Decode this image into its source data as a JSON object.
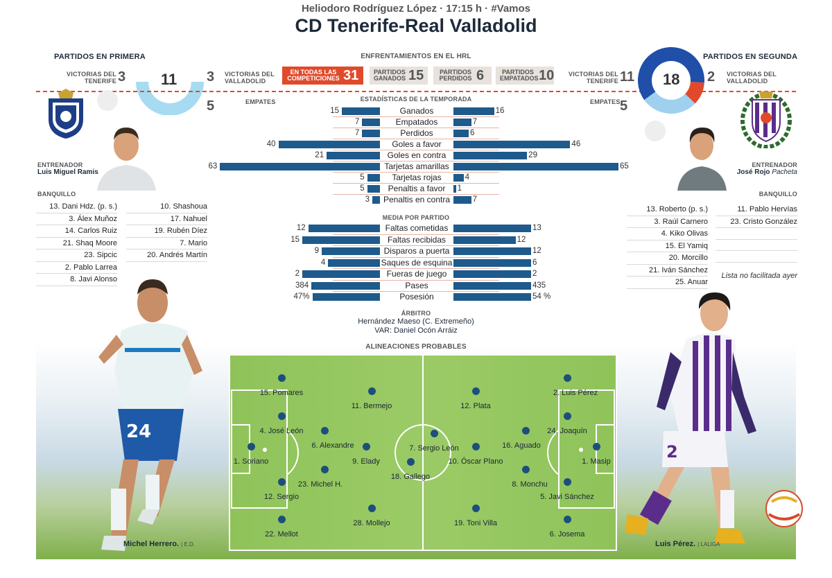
{
  "header": {
    "subtitle": "Heliodoro Rodríguez López · 17:15 h · #Vamos",
    "title": "CD Tenerife-Real Valladolid"
  },
  "primera": {
    "heading": "PARTIDOS EN PRIMERA",
    "total": "11",
    "wins_label": "VICTORIAS DEL TENERIFE",
    "wins": "3",
    "valla_label": "VICTORIAS DEL VALLADOLID",
    "valla": "3",
    "draws_label": "EMPATES",
    "draws": "5"
  },
  "segunda": {
    "heading": "PARTIDOS EN SEGUNDA",
    "total": "18",
    "wins_label": "VICTORIAS DEL TENERIFE",
    "wins": "11",
    "valla_label": "VICTORIAS DEL VALLADOLID",
    "valla": "2",
    "draws_label": "EMPATES",
    "draws": "5"
  },
  "hrl": {
    "heading": "ENFRENTAMIENTOS EN EL HRL",
    "items": [
      {
        "label": "EN TODAS LAS COMPETICIONES",
        "value": "31"
      },
      {
        "label": "PARTIDOS GANADOS",
        "value": "15"
      },
      {
        "label": "PARTIDOS PERDIDOS",
        "value": "6"
      },
      {
        "label": "PARTIDOS EMPATADOS",
        "value": "10"
      }
    ]
  },
  "season": {
    "heading": "ESTADÍSTICAS DE LA TEMPORADA",
    "rows": [
      {
        "label": "Ganados",
        "left": 15,
        "right": 16
      },
      {
        "label": "Empatados",
        "left": 7,
        "right": 7
      },
      {
        "label": "Perdidos",
        "left": 7,
        "right": 6
      },
      {
        "label": "Goles a favor",
        "left": 40,
        "right": 46
      },
      {
        "label": "Goles en contra",
        "left": 21,
        "right": 29
      },
      {
        "label": "Tarjetas amarillas",
        "left": 63,
        "right": 65
      },
      {
        "label": "Tarjetas rojas",
        "left": 5,
        "right": 4
      },
      {
        "label": "Penaltis a favor",
        "left": 5,
        "right": 1
      },
      {
        "label": "Penaltis en contra",
        "left": 3,
        "right": 7
      }
    ]
  },
  "per_match": {
    "heading": "MEDIA POR PARTIDO",
    "rows": [
      {
        "label": "Faltas cometidas",
        "left": "12",
        "right": "13",
        "lv": 12,
        "rv": 13
      },
      {
        "label": "Faltas recibidas",
        "left": "15",
        "right": "12",
        "lv": 15,
        "rv": 12
      },
      {
        "label": "Disparos a puerta",
        "left": "9",
        "right": "12",
        "lv": 9,
        "rv": 12
      },
      {
        "label": "Saques de esquina",
        "left": "4",
        "right": "6",
        "lv": 4,
        "rv": 6
      },
      {
        "label": "Fueras de juego",
        "left": "2",
        "right": "2",
        "lv": 2,
        "rv": 2
      },
      {
        "label": "Pases",
        "left": "384",
        "right": "435",
        "lv": 384,
        "rv": 435
      },
      {
        "label": "Posesión",
        "left": "47%",
        "right": "54 %",
        "lv": 47,
        "rv": 54
      }
    ]
  },
  "referee": {
    "heading": "ÁRBITRO",
    "name": "Hernández Maeso (C. Extremeño)",
    "var": "VAR: Daniel Ocón Arráiz"
  },
  "coaches": {
    "left_label": "ENTRENADOR",
    "left_name": "Luis Miguel Ramis",
    "right_label": "ENTRENADOR",
    "right_name_a": "José Rojo ",
    "right_name_b": "Pacheta"
  },
  "bench": {
    "label": "BANQUILLO",
    "left_col1": [
      "13. Dani Hdz. (p. s.)",
      "3. Álex Muñoz",
      "14. Carlos Ruiz",
      "21. Shaq Moore",
      "23. Sipcic",
      "2. Pablo Larrea",
      "8. Javi Alonso"
    ],
    "left_col2": [
      "10. Shashoua",
      "17. Nahuel",
      "19. Rubén Díez",
      "7. Mario",
      "20. Andrés Martín"
    ],
    "right_col1": [
      "13. Roberto (p. s.)",
      "3. Raúl Carnero",
      "4. Kiko Olivas",
      "15. El Yamiq",
      "20. Morcillo",
      "21. Iván Sánchez",
      "25. Anuar"
    ],
    "right_col2": [
      "11. Pablo Hervías",
      "23. Cristo González"
    ],
    "right_note": "Lista no facilitada ayer"
  },
  "lineups": {
    "heading": "ALINEACIONES PROBABLES",
    "players": [
      {
        "name": "15. Pomares"
      },
      {
        "name": "4. José León"
      },
      {
        "name": "1. Soriano"
      },
      {
        "name": "12. Sergio"
      },
      {
        "name": "22. Mellot"
      },
      {
        "name": "11. Bermejo"
      },
      {
        "name": "6. Alexandre"
      },
      {
        "name": "9. Elady"
      },
      {
        "name": "23. Michel H."
      },
      {
        "name": "28. Mollejo"
      },
      {
        "name": "7. Sergio León"
      },
      {
        "name": "18. Gallego"
      },
      {
        "name": "12. Plata"
      },
      {
        "name": "10. Óscar Plano"
      },
      {
        "name": "19. Toni Villa"
      },
      {
        "name": "16. Aguado"
      },
      {
        "name": "8. Monchu"
      },
      {
        "name": "2. Luis Pérez"
      },
      {
        "name": "24. Joaquín"
      },
      {
        "name": "1. Masip"
      },
      {
        "name": "5. Javi Sánchez"
      },
      {
        "name": "6. Josema"
      }
    ]
  },
  "captions": {
    "left_name": "Michel Herrero.",
    "left_credit": "| E.D.",
    "right_name": "Luis Pérez.",
    "right_credit": "| LALIGA"
  },
  "colors": {
    "accent_red": "#e04a2a",
    "bar_blue": "#1e5a8c",
    "donut_dark": "#1f4fa8",
    "donut_light": "#9fd0ee"
  }
}
